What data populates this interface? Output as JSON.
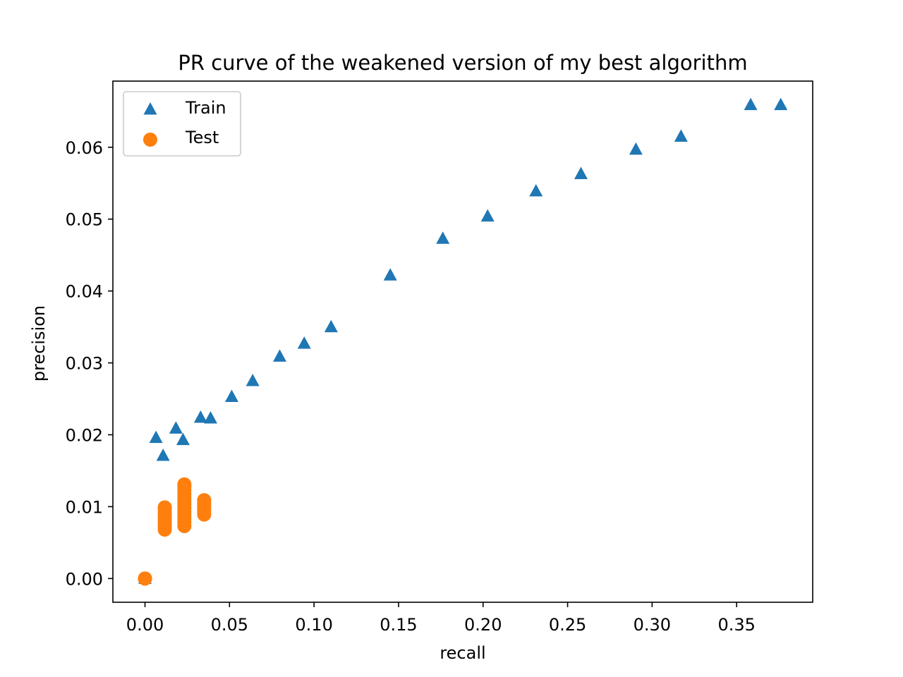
{
  "chart_data": {
    "type": "scatter",
    "title": "PR curve of the weakened version of my best algorithm",
    "xlabel": "recall",
    "ylabel": "precision",
    "xlim": [
      -0.019,
      0.395
    ],
    "ylim": [
      -0.0033,
      0.0692
    ],
    "xticks": [
      0.0,
      0.05,
      0.1,
      0.15,
      0.2,
      0.25,
      0.3,
      0.35
    ],
    "xtick_labels": [
      "0.00",
      "0.05",
      "0.10",
      "0.15",
      "0.20",
      "0.25",
      "0.30",
      "0.35"
    ],
    "yticks": [
      0.0,
      0.01,
      0.02,
      0.03,
      0.04,
      0.05,
      0.06
    ],
    "ytick_labels": [
      "0.00",
      "0.01",
      "0.02",
      "0.03",
      "0.04",
      "0.05",
      "0.06"
    ],
    "grid": false,
    "legend": "upper left",
    "series": [
      {
        "name": "Train",
        "marker": "triangle",
        "color": "#1f77b4",
        "points": [
          [
            0.0,
            0.0
          ],
          [
            0.0065,
            0.0196
          ],
          [
            0.0107,
            0.0171
          ],
          [
            0.0183,
            0.0209
          ],
          [
            0.0225,
            0.0193
          ],
          [
            0.0329,
            0.0224
          ],
          [
            0.0388,
            0.0223
          ],
          [
            0.0513,
            0.0253
          ],
          [
            0.0637,
            0.0275
          ],
          [
            0.0797,
            0.0309
          ],
          [
            0.0942,
            0.0327
          ],
          [
            0.1101,
            0.035
          ],
          [
            0.1451,
            0.0422
          ],
          [
            0.1762,
            0.0473
          ],
          [
            0.2027,
            0.0504
          ],
          [
            0.2313,
            0.0539
          ],
          [
            0.2579,
            0.0563
          ],
          [
            0.2904,
            0.0597
          ],
          [
            0.3171,
            0.0615
          ],
          [
            0.3583,
            0.0659
          ],
          [
            0.3761,
            0.0659
          ]
        ]
      },
      {
        "name": "Test",
        "marker": "circle",
        "color": "#ff7f0e",
        "points": [
          [
            0.0,
            0.0
          ],
          [
            0.0,
            0.0
          ],
          [
            0.0,
            0.0
          ],
          [
            0.0117,
            0.0068
          ],
          [
            0.0117,
            0.0072
          ],
          [
            0.0117,
            0.0076
          ],
          [
            0.0117,
            0.008
          ],
          [
            0.0117,
            0.0084
          ],
          [
            0.0117,
            0.0088
          ],
          [
            0.0117,
            0.0092
          ],
          [
            0.0117,
            0.0096
          ],
          [
            0.0117,
            0.0099
          ],
          [
            0.0233,
            0.0073
          ],
          [
            0.0233,
            0.0078
          ],
          [
            0.0233,
            0.0083
          ],
          [
            0.0233,
            0.0088
          ],
          [
            0.0233,
            0.0093
          ],
          [
            0.0233,
            0.0098
          ],
          [
            0.0233,
            0.0103
          ],
          [
            0.0233,
            0.0108
          ],
          [
            0.0233,
            0.0113
          ],
          [
            0.0233,
            0.0118
          ],
          [
            0.0233,
            0.0123
          ],
          [
            0.0233,
            0.0128
          ],
          [
            0.0233,
            0.0131
          ],
          [
            0.035,
            0.0089
          ],
          [
            0.035,
            0.0093
          ],
          [
            0.035,
            0.0097
          ],
          [
            0.035,
            0.0101
          ],
          [
            0.035,
            0.0105
          ],
          [
            0.035,
            0.0109
          ]
        ]
      }
    ]
  }
}
